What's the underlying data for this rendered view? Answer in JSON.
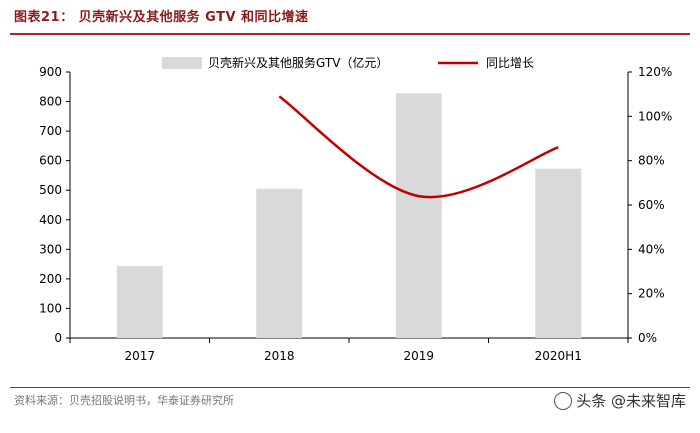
{
  "header": {
    "title": "图表21：  贝壳新兴及其他服务 GTV 和同比增速"
  },
  "footer": {
    "source": "资料来源：贝壳招股说明书，华泰证券研究所",
    "watermark": "头条 @未来智库"
  },
  "chart_data": {
    "type": "bar",
    "categories": [
      "2017",
      "2018",
      "2019",
      "2020H1"
    ],
    "series": [
      {
        "name": "贝壳新兴及其他服务GTV（亿元）",
        "kind": "bar",
        "axis": "left",
        "color": "#d9d9d9",
        "values": [
          243,
          505,
          828,
          573
        ]
      },
      {
        "name": "同比增长",
        "kind": "line",
        "axis": "right",
        "color": "#c00000",
        "values": [
          null,
          109,
          64,
          86
        ]
      }
    ],
    "left_axis": {
      "range": [
        0,
        900
      ],
      "ticks": [
        "0",
        "100",
        "200",
        "300",
        "400",
        "500",
        "600",
        "700",
        "800",
        "900"
      ]
    },
    "right_axis": {
      "range": [
        0,
        120
      ],
      "ticks": [
        "0%",
        "20%",
        "40%",
        "60%",
        "80%",
        "100%",
        "120%"
      ]
    },
    "legend_position": "top"
  }
}
